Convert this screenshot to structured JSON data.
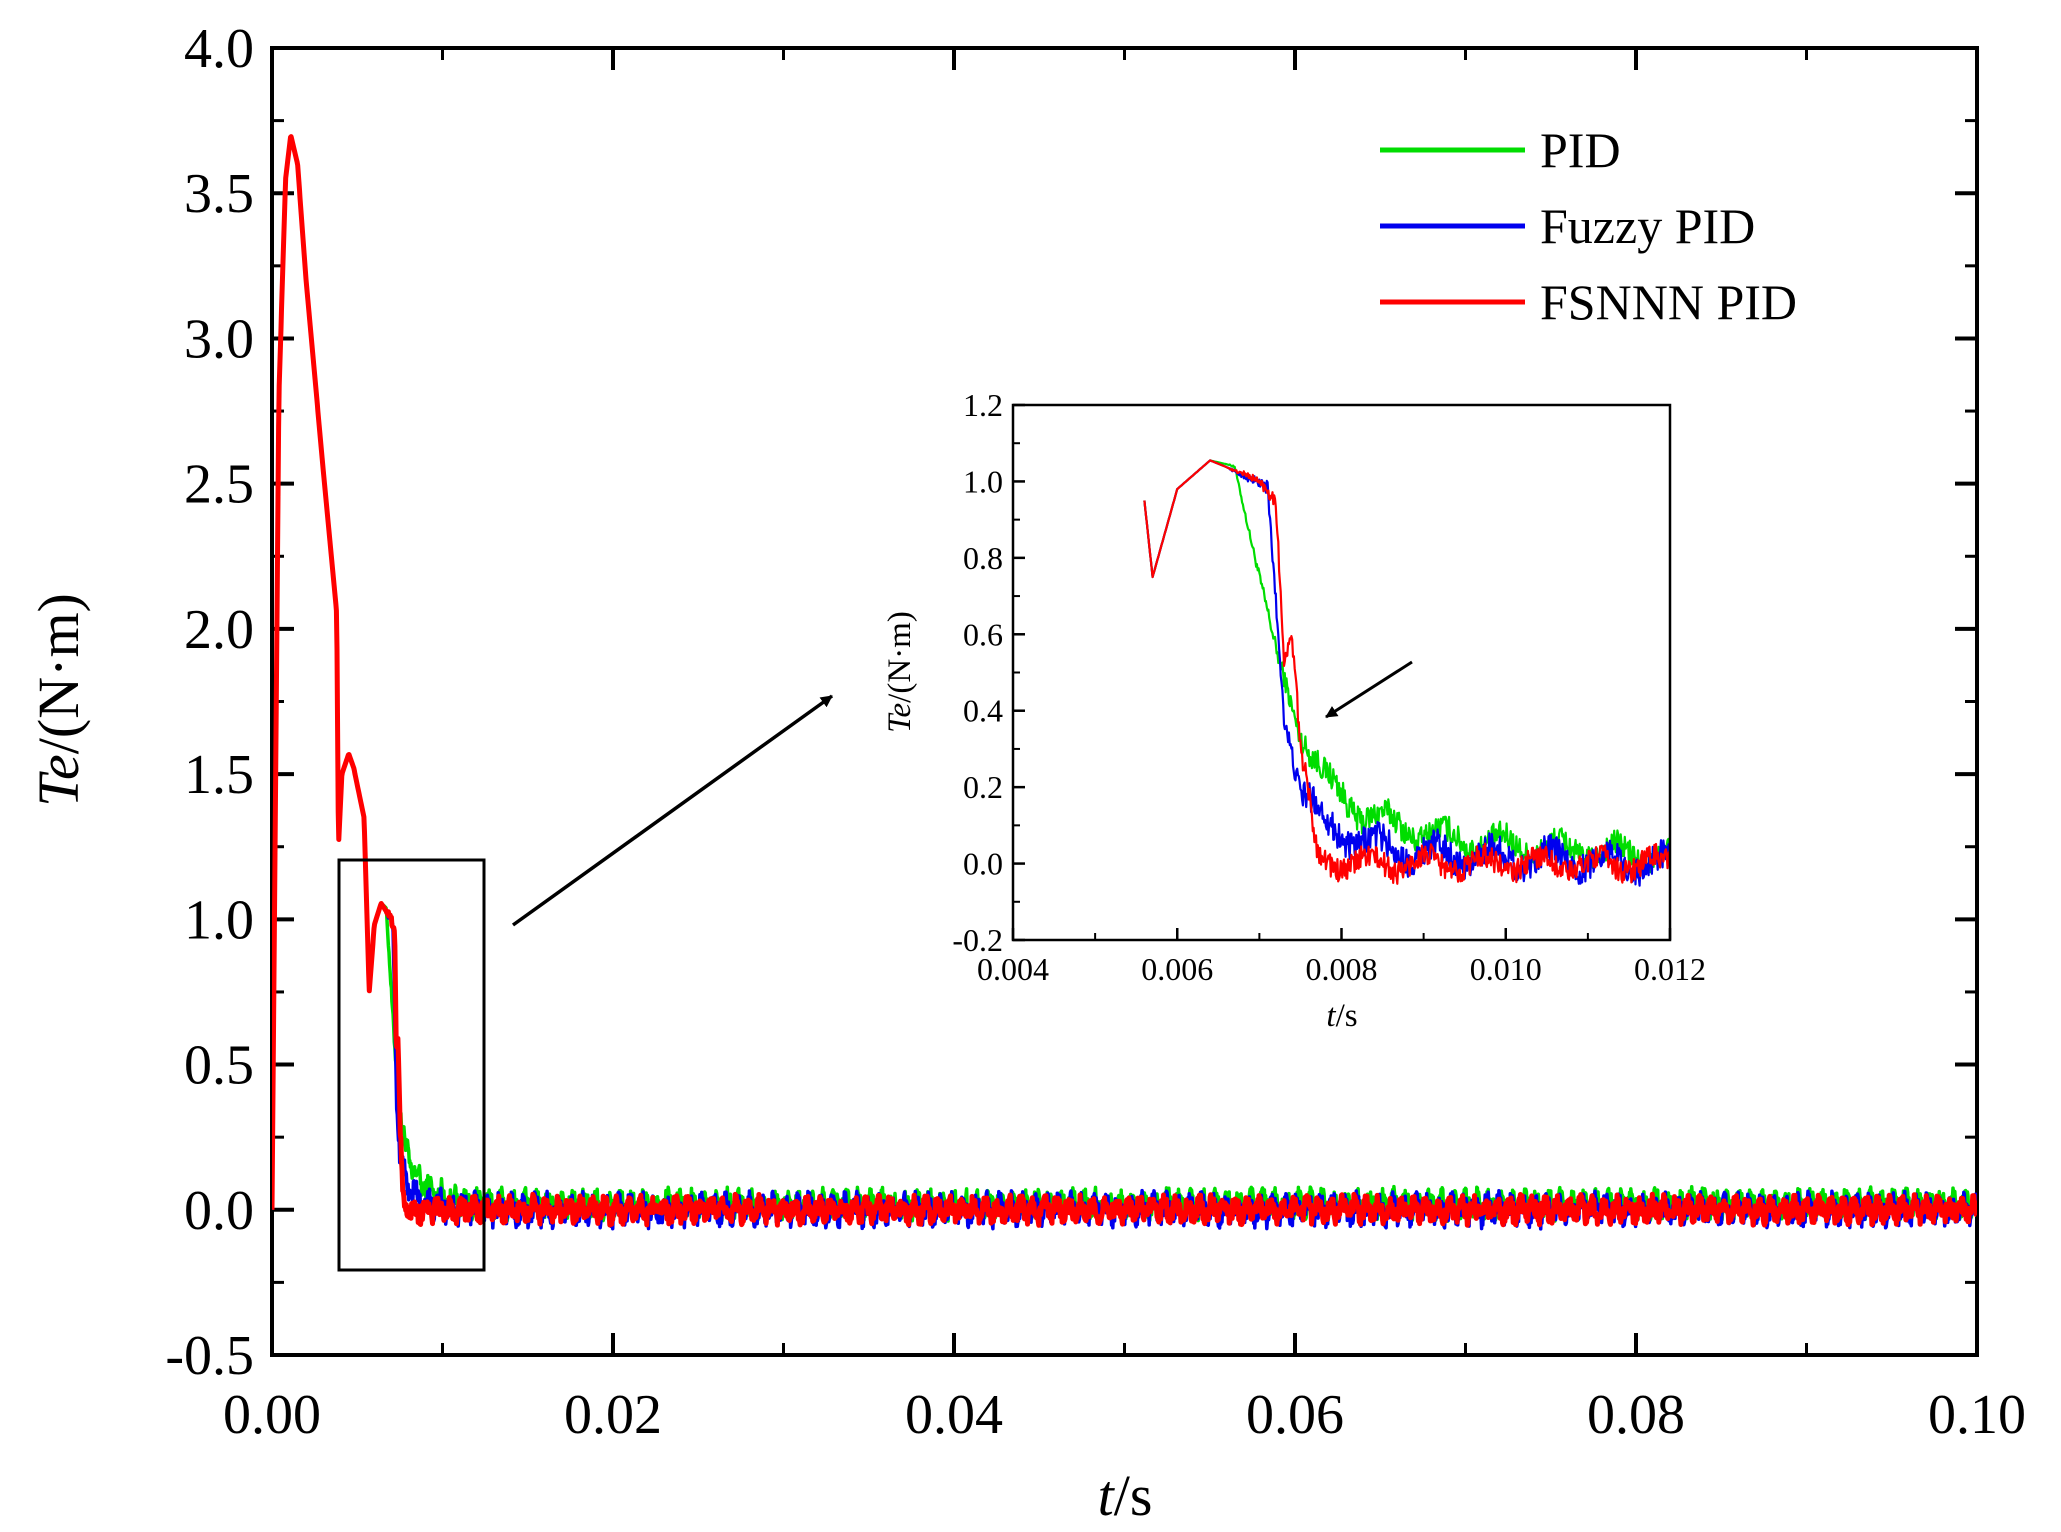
{
  "chart_data": [
    {
      "type": "line",
      "xlabel": "t/s",
      "xlabel_italic": "t",
      "xlabel_unit": "/s",
      "ylabel": "Te/(N·m)",
      "ylabel_italic": "Te",
      "ylabel_unit": "/(N·m)",
      "xlim": [
        0,
        0.1
      ],
      "ylim": [
        -0.5,
        4.0
      ],
      "xticks": [
        "0.00",
        "0.02",
        "0.04",
        "0.06",
        "0.08",
        "0.10"
      ],
      "yticks": [
        "-0.5",
        "0.0",
        "0.5",
        "1.0",
        "1.5",
        "2.0",
        "2.5",
        "3.0",
        "3.5",
        "4.0"
      ],
      "legend_position": "top-right",
      "series": [
        {
          "name": "PID",
          "color": "#00dd00",
          "x": [
            0,
            0.0004,
            0.0008,
            0.0011,
            0.0015,
            0.002,
            0.003,
            0.0038,
            0.0039,
            0.0041,
            0.0045,
            0.0048,
            0.0054,
            0.0057,
            0.006,
            0.0064,
            0.0067,
            0.0069,
            0.0072,
            0.0075,
            0.0078,
            0.0082,
            0.0088,
            0.0095,
            0.0105,
            0.012
          ],
          "y": [
            0,
            2.8,
            3.55,
            3.7,
            3.6,
            3.2,
            2.55,
            2.05,
            1.25,
            1.5,
            1.57,
            1.52,
            1.35,
            0.75,
            0.98,
            1.055,
            1.04,
            0.85,
            0.55,
            0.35,
            0.22,
            0.14,
            0.09,
            0.06,
            0.04,
            0.02
          ],
          "noise_amplitude": 0.05
        },
        {
          "name": "Fuzzy PID",
          "color": "#0000ee",
          "x": [
            0,
            0.0004,
            0.0008,
            0.0011,
            0.0015,
            0.002,
            0.003,
            0.0038,
            0.0039,
            0.0041,
            0.0045,
            0.0048,
            0.0054,
            0.0057,
            0.006,
            0.0064,
            0.0068,
            0.0071,
            0.0073,
            0.0075,
            0.0078,
            0.0082,
            0.0088,
            0.0095,
            0.012
          ],
          "y": [
            0,
            2.8,
            3.55,
            3.7,
            3.6,
            3.2,
            2.55,
            2.05,
            1.25,
            1.5,
            1.57,
            1.52,
            1.35,
            0.75,
            0.98,
            1.055,
            1.02,
            0.97,
            0.4,
            0.2,
            0.1,
            0.06,
            0.03,
            0.02,
            0.0
          ],
          "noise_amplitude": 0.055
        },
        {
          "name": "FSNNN PID",
          "color": "#ff0000",
          "x": [
            0,
            0.0004,
            0.0008,
            0.0011,
            0.0015,
            0.002,
            0.003,
            0.0038,
            0.0039,
            0.0041,
            0.0045,
            0.0048,
            0.0054,
            0.0057,
            0.006,
            0.0064,
            0.0068,
            0.0072,
            0.0073,
            0.0074,
            0.0075,
            0.0077,
            0.008,
            0.009,
            0.012
          ],
          "y": [
            0,
            2.8,
            3.55,
            3.7,
            3.6,
            3.2,
            2.55,
            2.05,
            1.25,
            1.5,
            1.57,
            1.52,
            1.35,
            0.75,
            0.98,
            1.055,
            1.02,
            0.96,
            0.55,
            0.6,
            0.3,
            0.02,
            0.0,
            0.0,
            0.0
          ],
          "noise_amplitude": 0.045
        }
      ],
      "annotations": [
        "zoom rectangle around t = 0.004–0.012 s",
        "arrow pointing to inset"
      ]
    },
    {
      "type": "line",
      "role": "inset",
      "xlabel": "t/s",
      "xlabel_italic": "t",
      "xlabel_unit": "/s",
      "ylabel": "Te/(N·m)",
      "ylabel_italic": "Te",
      "ylabel_unit": "/(N·m)",
      "xlim": [
        0.004,
        0.012
      ],
      "ylim": [
        -0.2,
        1.2
      ],
      "xticks": [
        "0.004",
        "0.006",
        "0.008",
        "0.010",
        "0.012"
      ],
      "yticks": [
        "-0.2",
        "0.0",
        "0.2",
        "0.4",
        "0.6",
        "0.8",
        "1.0",
        "1.2"
      ],
      "annotations": [
        "arrow pointing to FSNNN PID curve near t = 0.0075 s"
      ]
    }
  ]
}
